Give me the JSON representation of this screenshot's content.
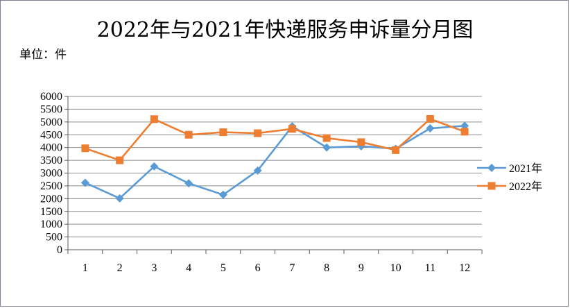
{
  "chart_data": {
    "type": "line",
    "title": "2022年与2021年快递服务申诉量分月图",
    "unit_label": "单位：件",
    "categories": [
      "1",
      "2",
      "3",
      "4",
      "5",
      "6",
      "7",
      "8",
      "9",
      "10",
      "11",
      "12"
    ],
    "ylim": [
      0,
      6000
    ],
    "y_ticks": [
      0,
      500,
      1000,
      1500,
      2000,
      2500,
      3000,
      3500,
      4000,
      4500,
      5000,
      5500,
      6000
    ],
    "grid": true,
    "legend_position": "right",
    "series": [
      {
        "name": "2021年",
        "marker": "diamond",
        "color": "#5b9bd5",
        "values": [
          2620,
          2010,
          3260,
          2600,
          2150,
          3100,
          4830,
          4000,
          4050,
          3950,
          4750,
          4850
        ]
      },
      {
        "name": "2022年",
        "marker": "square",
        "color": "#ed7d31",
        "values": [
          3970,
          3500,
          5110,
          4500,
          4600,
          4560,
          4730,
          4370,
          4210,
          3900,
          5120,
          4620
        ]
      }
    ]
  }
}
